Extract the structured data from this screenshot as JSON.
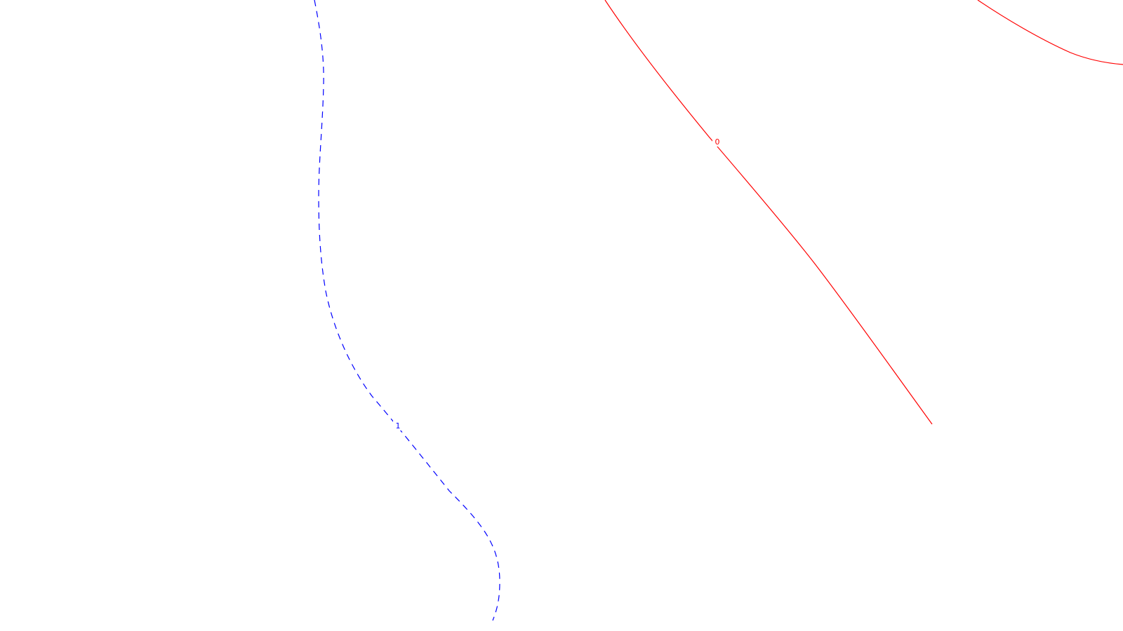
{
  "contours": [
    {
      "label": "1",
      "color": "#0000ff",
      "style": "dashed"
    },
    {
      "label": "0",
      "color": "#ff0000",
      "style": "solid"
    },
    {
      "label": "",
      "color": "#ff0000",
      "style": "solid"
    }
  ],
  "background": "#ffffff"
}
